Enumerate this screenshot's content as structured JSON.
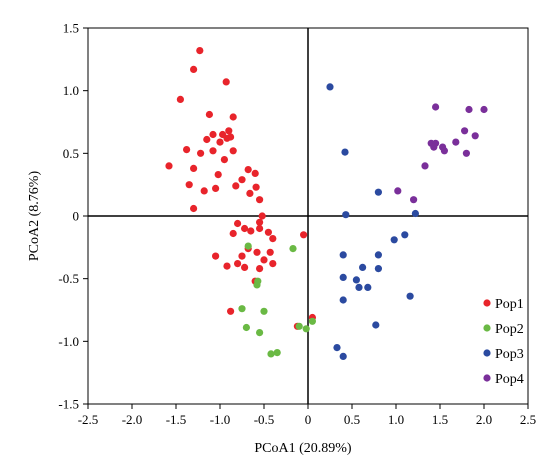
{
  "chart_data": {
    "type": "scatter",
    "xlabel": "PCoA1 (20.89%)",
    "ylabel": "PCoA2 (8.76%)",
    "xlim": [
      -2.5,
      2.5
    ],
    "ylim": [
      -1.5,
      1.5
    ],
    "xticks": [
      "-2.5",
      "-2.0",
      "-1.5",
      "-1.0",
      "-0.5",
      "0",
      "0.5",
      "1.0",
      "1.5",
      "2.0",
      "2.5"
    ],
    "yticks": [
      "1.5",
      "1.0",
      "0.5",
      "0",
      "-0.5",
      "-1.0",
      "-1.5"
    ],
    "reference_lines": {
      "x": 0,
      "y": 0
    },
    "legend_position": "bottom-right",
    "series": [
      {
        "name": "Pop1",
        "color": "#e8242b",
        "points": [
          [
            -1.23,
            1.32
          ],
          [
            -0.93,
            1.07
          ],
          [
            -1.3,
            1.17
          ],
          [
            -1.45,
            0.93
          ],
          [
            -1.12,
            0.81
          ],
          [
            -0.85,
            0.79
          ],
          [
            -0.9,
            0.68
          ],
          [
            -0.97,
            0.65
          ],
          [
            -1.08,
            0.65
          ],
          [
            -1.15,
            0.61
          ],
          [
            -0.92,
            0.62
          ],
          [
            -0.88,
            0.63
          ],
          [
            -1.0,
            0.59
          ],
          [
            -0.85,
            0.52
          ],
          [
            -1.08,
            0.52
          ],
          [
            -1.22,
            0.5
          ],
          [
            -0.95,
            0.45
          ],
          [
            -1.38,
            0.53
          ],
          [
            -1.58,
            0.4
          ],
          [
            -1.3,
            0.38
          ],
          [
            -1.02,
            0.33
          ],
          [
            -0.68,
            0.37
          ],
          [
            -0.6,
            0.34
          ],
          [
            -0.75,
            0.29
          ],
          [
            -1.35,
            0.25
          ],
          [
            -0.82,
            0.24
          ],
          [
            -0.59,
            0.23
          ],
          [
            -1.18,
            0.2
          ],
          [
            -1.05,
            0.22
          ],
          [
            -0.66,
            0.18
          ],
          [
            -0.55,
            0.13
          ],
          [
            -1.3,
            0.06
          ],
          [
            -0.52,
            0.0
          ],
          [
            -0.55,
            -0.05
          ],
          [
            -0.55,
            -0.1
          ],
          [
            -0.8,
            -0.06
          ],
          [
            -0.72,
            -0.1
          ],
          [
            -0.65,
            -0.12
          ],
          [
            -0.45,
            -0.13
          ],
          [
            -0.85,
            -0.14
          ],
          [
            -0.4,
            -0.18
          ],
          [
            -0.05,
            -0.15
          ],
          [
            -0.68,
            -0.26
          ],
          [
            -0.58,
            -0.29
          ],
          [
            -0.43,
            -0.29
          ],
          [
            -0.5,
            -0.35
          ],
          [
            -0.75,
            -0.32
          ],
          [
            -0.4,
            -0.38
          ],
          [
            -1.05,
            -0.32
          ],
          [
            -0.92,
            -0.4
          ],
          [
            -0.8,
            -0.38
          ],
          [
            -0.72,
            -0.41
          ],
          [
            -0.55,
            -0.42
          ],
          [
            -0.6,
            -0.52
          ],
          [
            -0.88,
            -0.76
          ],
          [
            0.05,
            -0.81
          ],
          [
            -0.12,
            -0.88
          ]
        ]
      },
      {
        "name": "Pop2",
        "color": "#6ab944",
        "points": [
          [
            -0.68,
            -0.24
          ],
          [
            -0.17,
            -0.26
          ],
          [
            -0.57,
            -0.52
          ],
          [
            -0.58,
            -0.55
          ],
          [
            -0.75,
            -0.74
          ],
          [
            -0.5,
            -0.76
          ],
          [
            -0.7,
            -0.89
          ],
          [
            -0.55,
            -0.93
          ],
          [
            -0.1,
            -0.88
          ],
          [
            0.05,
            -0.84
          ],
          [
            -0.02,
            -0.9
          ],
          [
            -0.35,
            -1.09
          ],
          [
            -0.42,
            -1.1
          ]
        ]
      },
      {
        "name": "Pop3",
        "color": "#2b4aa0",
        "points": [
          [
            0.25,
            1.03
          ],
          [
            0.42,
            0.51
          ],
          [
            0.8,
            0.19
          ],
          [
            0.43,
            0.01
          ],
          [
            1.22,
            0.02
          ],
          [
            1.1,
            -0.15
          ],
          [
            0.98,
            -0.19
          ],
          [
            0.4,
            -0.31
          ],
          [
            0.8,
            -0.31
          ],
          [
            0.62,
            -0.41
          ],
          [
            0.8,
            -0.42
          ],
          [
            0.55,
            -0.51
          ],
          [
            0.4,
            -0.49
          ],
          [
            0.68,
            -0.57
          ],
          [
            0.58,
            -0.57
          ],
          [
            0.4,
            -0.67
          ],
          [
            1.16,
            -0.64
          ],
          [
            0.77,
            -0.87
          ],
          [
            0.33,
            -1.05
          ],
          [
            0.4,
            -1.12
          ]
        ]
      },
      {
        "name": "Pop4",
        "color": "#7a2f9a",
        "points": [
          [
            1.45,
            0.87
          ],
          [
            1.83,
            0.85
          ],
          [
            2.0,
            0.85
          ],
          [
            1.78,
            0.68
          ],
          [
            1.9,
            0.64
          ],
          [
            1.4,
            0.58
          ],
          [
            1.45,
            0.58
          ],
          [
            1.43,
            0.55
          ],
          [
            1.53,
            0.55
          ],
          [
            1.55,
            0.52
          ],
          [
            1.8,
            0.5
          ],
          [
            1.68,
            0.59
          ],
          [
            1.33,
            0.4
          ],
          [
            1.02,
            0.2
          ],
          [
            1.2,
            0.13
          ]
        ]
      }
    ]
  }
}
